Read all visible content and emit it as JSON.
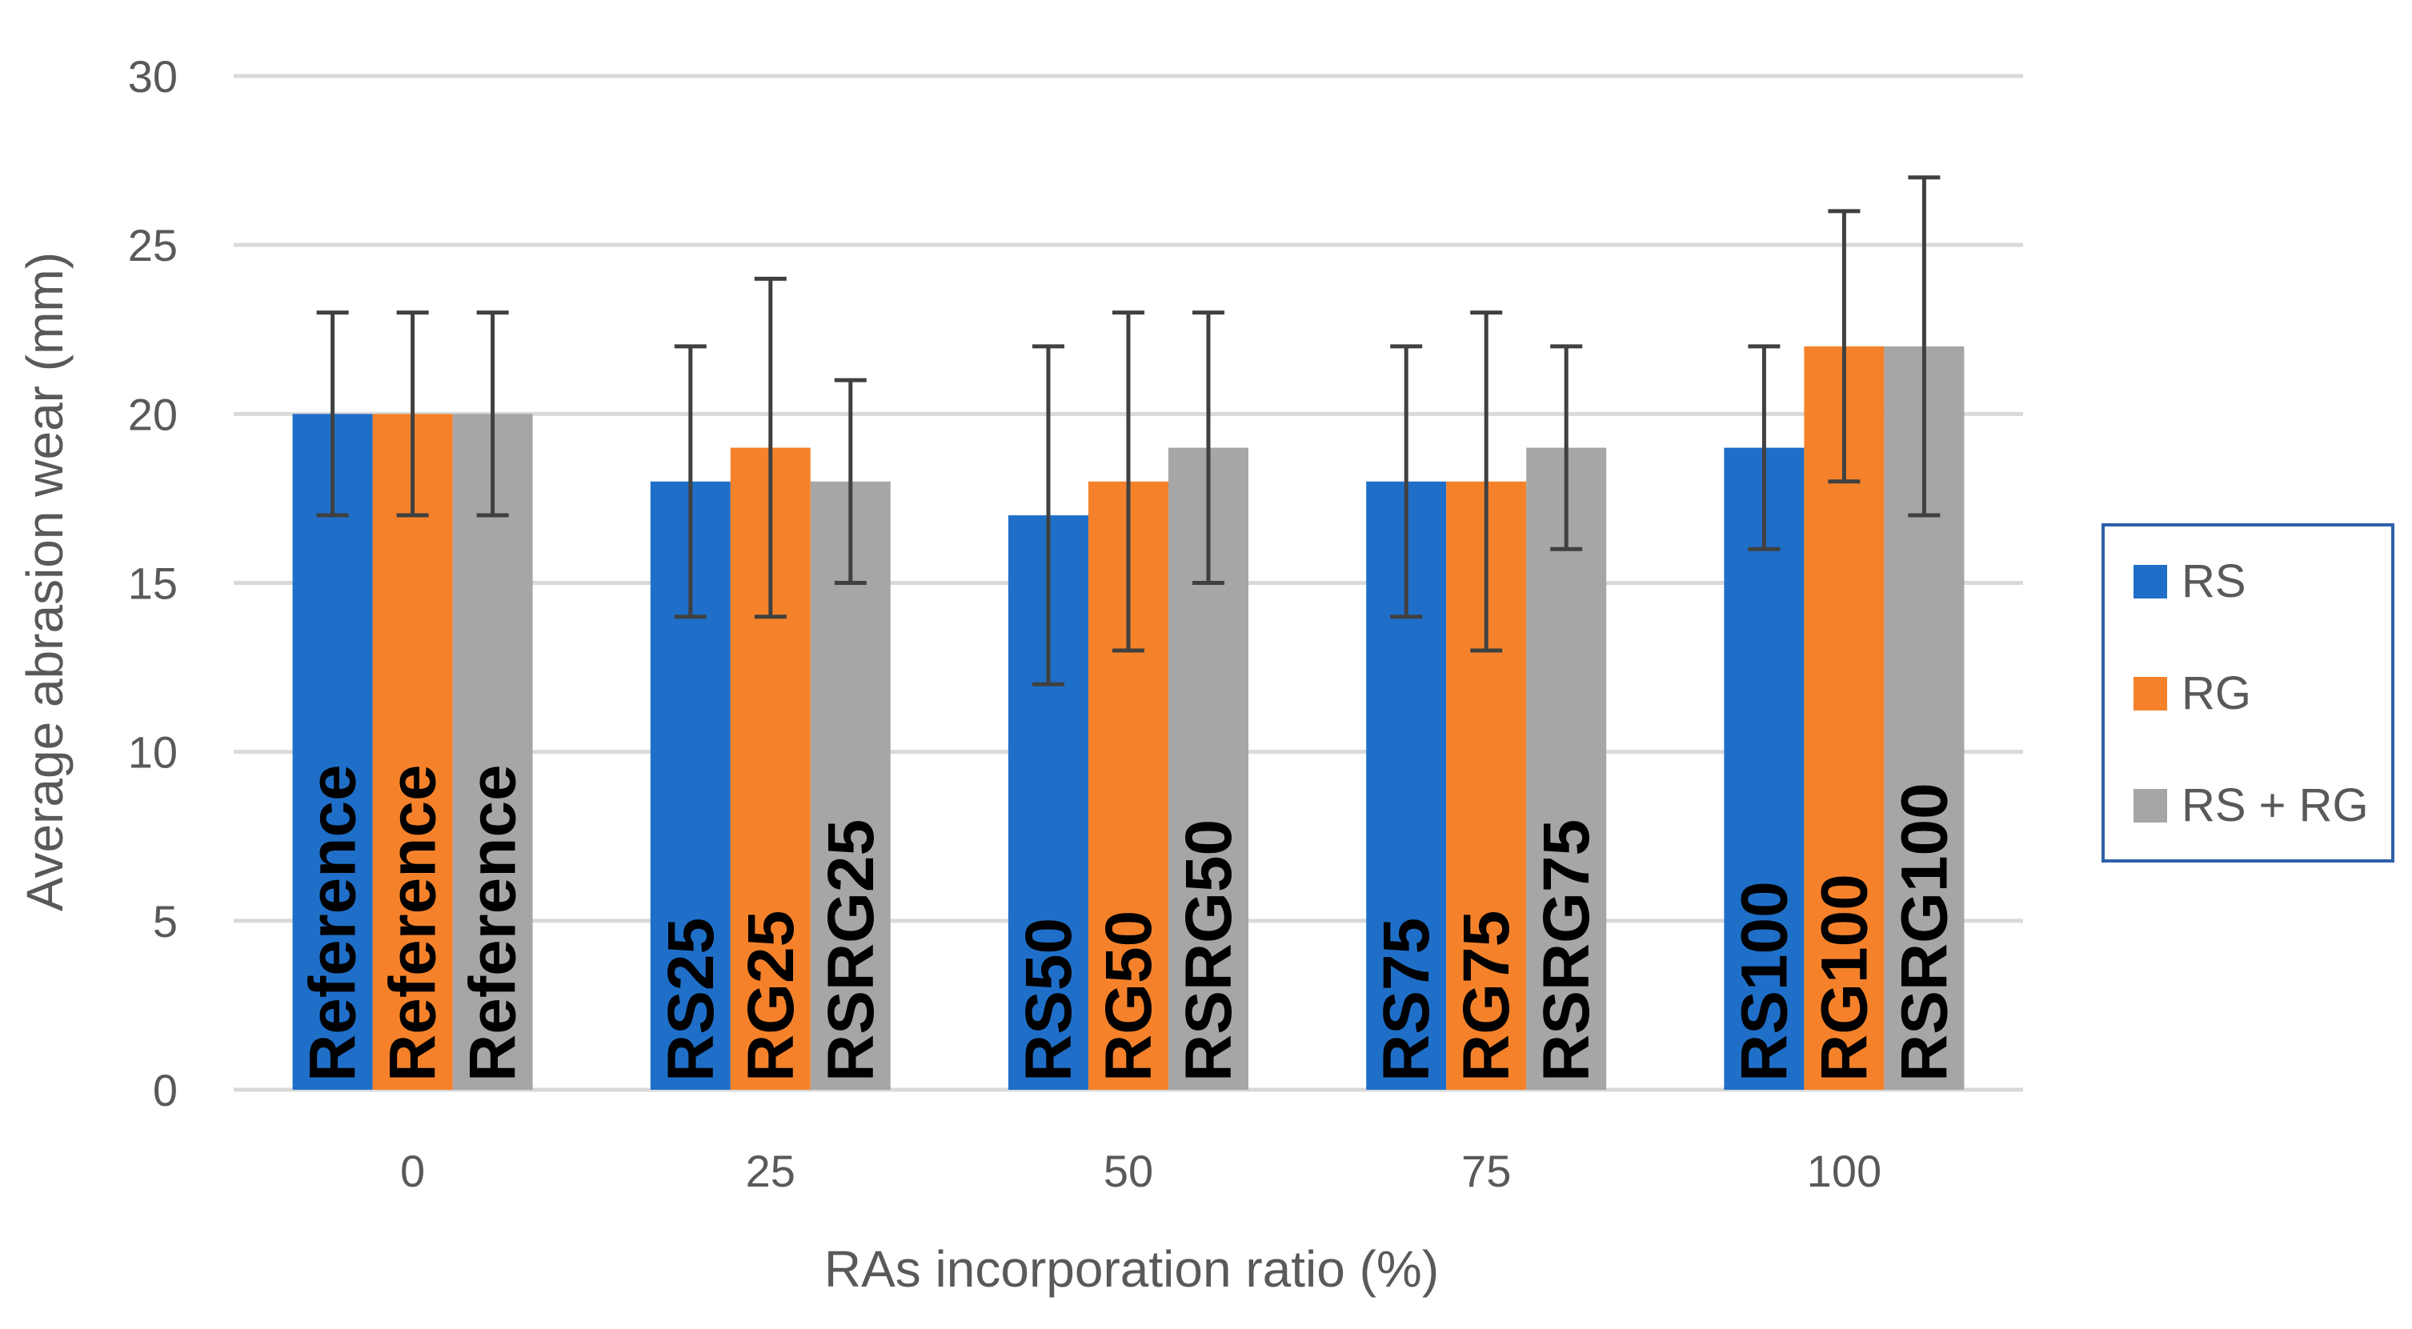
{
  "chart_data": {
    "type": "bar",
    "title": "",
    "xlabel": "RAs incorporation ratio (%)",
    "ylabel": "Average abrasion wear (mm)",
    "ylim": [
      0,
      30
    ],
    "yticks": [
      0,
      5,
      10,
      15,
      20,
      25,
      30
    ],
    "categories": [
      "0",
      "25",
      "50",
      "75",
      "100"
    ],
    "grid": true,
    "legend_position": "right",
    "series": [
      {
        "name": "RS",
        "color": "#1F6FC8",
        "values": [
          20,
          18,
          17,
          18,
          19
        ],
        "error_low": [
          17,
          14,
          12,
          14,
          16
        ],
        "error_high": [
          23,
          22,
          22,
          22,
          22
        ],
        "labels": [
          "Reference",
          "RS25",
          "RS50",
          "RS75",
          "RS100"
        ]
      },
      {
        "name": "RG",
        "color": "#F5822A",
        "values": [
          20,
          19,
          18,
          18,
          22
        ],
        "error_low": [
          17,
          14,
          13,
          13,
          18
        ],
        "error_high": [
          23,
          24,
          23,
          23,
          26
        ],
        "labels": [
          "Reference",
          "RG25",
          "RG50",
          "RG75",
          "RG100"
        ]
      },
      {
        "name": "RS + RG",
        "color": "#A6A6A6",
        "values": [
          20,
          18,
          19,
          19,
          22
        ],
        "error_low": [
          17,
          15,
          15,
          16,
          17
        ],
        "error_high": [
          23,
          21,
          23,
          22,
          27
        ],
        "labels": [
          "Reference",
          "RSRG25",
          "RSRG50",
          "RSRG75",
          "RSRG100"
        ]
      }
    ],
    "legend_border_color": "#2F5FA8"
  }
}
